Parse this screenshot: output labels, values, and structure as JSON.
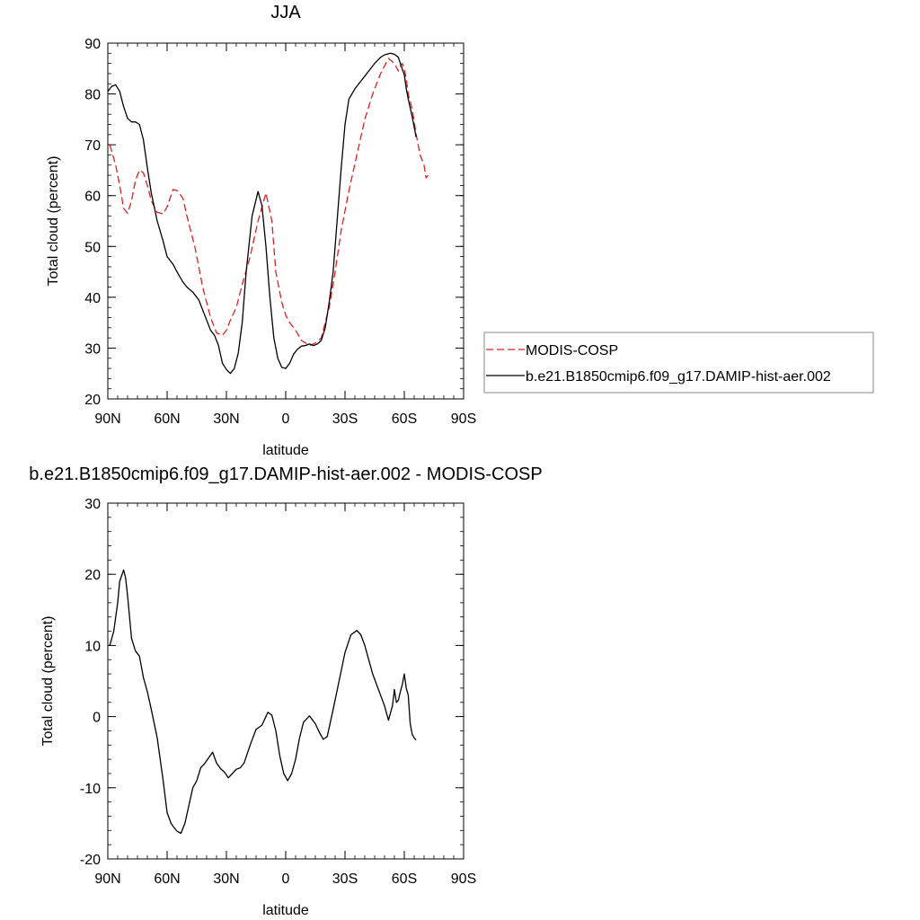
{
  "chart_data": [
    {
      "type": "line",
      "title": "JJA",
      "xlabel": "latitude",
      "ylabel": "Total cloud (percent)",
      "xlim": [
        90,
        -90
      ],
      "ylim": [
        20,
        90
      ],
      "x_ticks": [
        90,
        60,
        30,
        0,
        -30,
        -60,
        -90
      ],
      "x_tick_labels": [
        "90N",
        "60N",
        "30N",
        "0",
        "30S",
        "60S",
        "90S"
      ],
      "y_ticks": [
        20,
        30,
        40,
        50,
        60,
        70,
        80,
        90
      ],
      "y_tick_labels": [
        "20",
        "30",
        "40",
        "50",
        "60",
        "70",
        "80",
        "90"
      ],
      "grid": false,
      "legend": "outside-right",
      "series": [
        {
          "name": "MODIS-COSP",
          "style": "dashed",
          "color": "#e02020",
          "x": [
            89,
            86,
            84,
            82,
            80,
            78,
            76,
            74,
            72,
            70,
            68,
            65,
            62,
            60,
            57,
            55,
            52,
            50,
            46,
            42,
            38,
            35,
            32,
            30,
            28,
            25,
            22,
            18,
            14,
            10,
            7,
            5,
            2,
            0,
            -2,
            -5,
            -8,
            -12,
            -15,
            -18,
            -20,
            -22,
            -25,
            -28,
            -32,
            -36,
            -40,
            -44,
            -48,
            -52,
            -55,
            -57,
            -58,
            -59,
            -60,
            -61,
            -62,
            -64,
            -66,
            -68,
            -70,
            -71,
            -72
          ],
          "y": [
            70,
            66,
            62,
            57.5,
            56.5,
            59,
            63,
            65,
            64.5,
            62,
            59,
            56.7,
            56.4,
            57.8,
            61.2,
            61,
            59.5,
            56,
            50,
            42,
            36,
            33,
            32.5,
            33.5,
            35.5,
            38,
            42.5,
            48,
            55,
            60.5,
            55,
            45,
            39,
            36.5,
            35,
            33.5,
            31.5,
            30.5,
            31,
            32,
            35,
            38,
            45,
            53,
            61,
            68,
            75,
            80,
            84,
            87,
            86,
            84.5,
            85.5,
            86,
            85,
            83,
            80,
            77,
            72,
            68,
            66,
            63.5,
            64
          ]
        },
        {
          "name": "b.e21.B1850cmip6.f09_g17.DAMIP-hist-aer.002",
          "style": "solid",
          "color": "#000000",
          "x": [
            90,
            88,
            86,
            84,
            82,
            80,
            78,
            76,
            74,
            72,
            70,
            68,
            65,
            62,
            60,
            57,
            55,
            52,
            50,
            47,
            44,
            42,
            40,
            38,
            36,
            34,
            32,
            30,
            28,
            26,
            24,
            22,
            20,
            17,
            14,
            12,
            10,
            8,
            6,
            4,
            2,
            0,
            -2,
            -4,
            -6,
            -8,
            -10,
            -12,
            -14,
            -16,
            -18,
            -20,
            -22,
            -24,
            -26,
            -28,
            -30,
            -32,
            -35,
            -38,
            -40,
            -42,
            -45,
            -48,
            -50,
            -53,
            -55,
            -57,
            -58,
            -60,
            -61,
            -62,
            -64,
            -66
          ],
          "y": [
            80.5,
            81.5,
            81.8,
            80.5,
            77.5,
            75.2,
            74.5,
            74.5,
            74,
            71,
            65.5,
            60.5,
            55,
            51,
            48,
            46.5,
            45,
            43,
            42,
            41,
            39.5,
            37.5,
            35.5,
            33.5,
            32.5,
            30.5,
            27,
            25.8,
            25,
            26,
            29,
            35,
            45,
            56,
            60.8,
            58,
            50,
            40,
            32,
            28,
            26.2,
            26,
            27,
            28.8,
            29.8,
            30.4,
            30.5,
            30.8,
            30.5,
            30.8,
            31.5,
            34,
            39,
            45,
            55,
            65,
            74,
            79,
            81,
            82.5,
            83.5,
            84.5,
            86,
            87.2,
            87.7,
            88,
            87.8,
            87.2,
            86,
            83.8,
            81,
            79,
            75.5,
            71.5
          ]
        }
      ]
    },
    {
      "type": "line",
      "title": "b.e21.B1850cmip6.f09_g17.DAMIP-hist-aer.002 - MODIS-COSP",
      "xlabel": "latitude",
      "ylabel": "Total cloud (percent)",
      "xlim": [
        90,
        -90
      ],
      "ylim": [
        -20,
        30
      ],
      "x_ticks": [
        90,
        60,
        30,
        0,
        -30,
        -60,
        -90
      ],
      "x_tick_labels": [
        "90N",
        "60N",
        "30N",
        "0",
        "30S",
        "60S",
        "90S"
      ],
      "y_ticks": [
        -20,
        -10,
        0,
        10,
        20,
        30
      ],
      "y_tick_labels": [
        "-20",
        "-10",
        "0",
        "10",
        "20",
        "30"
      ],
      "grid": false,
      "series": [
        {
          "style": "solid",
          "color": "#000000",
          "x": [
            89,
            87,
            85,
            84,
            82,
            81,
            80,
            79,
            78,
            76,
            74,
            72,
            70,
            68,
            65,
            62,
            60,
            58,
            57,
            55,
            53,
            51,
            49,
            47,
            45,
            43,
            41,
            39,
            37,
            35,
            33,
            31,
            29,
            27,
            25,
            23,
            21,
            18,
            15,
            12,
            9,
            7,
            5,
            3,
            1,
            -1,
            -3,
            -5,
            -7,
            -9,
            -12,
            -15,
            -17,
            -19,
            -21,
            -24,
            -27,
            -30,
            -33,
            -36,
            -38,
            -40,
            -42,
            -44,
            -46,
            -48,
            -50,
            -52,
            -54,
            -55,
            -56,
            -57,
            -58,
            -59,
            -60,
            -61,
            -62,
            -63,
            -64,
            -65,
            -66
          ],
          "y": [
            10,
            12,
            16,
            19,
            20.6,
            19.5,
            17,
            14,
            11,
            9.2,
            8.5,
            5.5,
            3.5,
            1,
            -3,
            -9,
            -13.5,
            -15,
            -15.4,
            -16.1,
            -16.4,
            -15,
            -12.5,
            -10,
            -9,
            -7.2,
            -6.6,
            -5.8,
            -5,
            -6.5,
            -7.3,
            -7.8,
            -8.6,
            -8,
            -7.4,
            -7.2,
            -6.5,
            -4,
            -1.8,
            -1.2,
            0.6,
            0.2,
            -2,
            -5.5,
            -8,
            -9,
            -8,
            -6,
            -3,
            -0.8,
            0.1,
            -1,
            -2.2,
            -3.2,
            -2.8,
            1,
            5,
            9,
            11.5,
            12.1,
            11.5,
            10,
            8,
            6,
            4.5,
            3,
            1.5,
            -0.5,
            1.5,
            3.8,
            2,
            2.3,
            3.5,
            4.5,
            6,
            4,
            3,
            -1,
            -2.5,
            -3,
            -3.3
          ]
        }
      ]
    }
  ]
}
